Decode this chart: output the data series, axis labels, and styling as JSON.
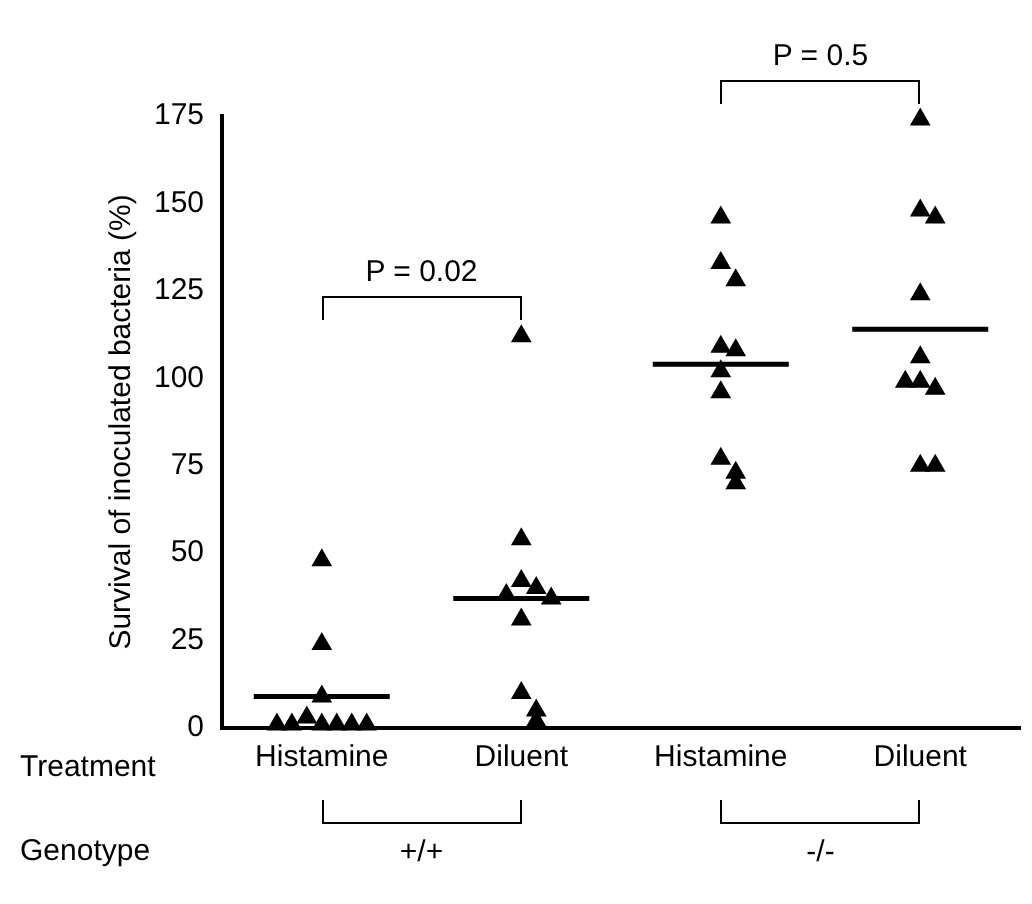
{
  "chart_data": {
    "type": "scatter",
    "xlabel": "Treatment",
    "ylabel": "Survival of inoculated bacteria (%)",
    "categories": [
      "Histamine",
      "Diluent",
      "Histamine",
      "Diluent"
    ],
    "marker": "triangle",
    "series": [
      {
        "color": "#000000",
        "values": [
          48,
          112,
          146,
          174
        ]
      },
      {
        "color": "#000000",
        "values": [
          24,
          54,
          133,
          148
        ]
      },
      {
        "color": "#000000",
        "values": [
          9,
          42,
          128,
          146
        ]
      },
      {
        "color": "#000000",
        "values": [
          1,
          40,
          109,
          124
        ]
      },
      {
        "color": "#000000",
        "values": [
          1,
          38,
          108,
          106
        ]
      },
      {
        "color": "#000000",
        "values": [
          3,
          37,
          102,
          99
        ]
      },
      {
        "color": "#000000",
        "values": [
          1,
          31,
          96,
          97
        ]
      },
      {
        "color": "#000000",
        "values": [
          1,
          10,
          77,
          99
        ]
      },
      {
        "color": "#000000",
        "values": [
          1,
          5,
          73,
          75
        ]
      },
      {
        "color": "#000000",
        "values": [
          1,
          2,
          70,
          75
        ]
      }
    ],
    "ref_lines": [
      {
        "axis": "y",
        "value": 9,
        "color": "#000000"
      },
      {
        "axis": "y",
        "value": 37,
        "color": "#000000"
      },
      {
        "axis": "y",
        "value": 104,
        "color": "#000000"
      },
      {
        "axis": "y",
        "value": 114,
        "color": "#000000"
      }
    ],
    "ylim": [
      0,
      175
    ],
    "yticks": [
      0,
      25,
      50,
      75,
      100,
      125,
      150,
      175
    ],
    "grid": false,
    "legend": false,
    "annotations": [
      "P = 0.02",
      "P = 0.5",
      "Genotype",
      "+/+",
      "-/-"
    ]
  }
}
